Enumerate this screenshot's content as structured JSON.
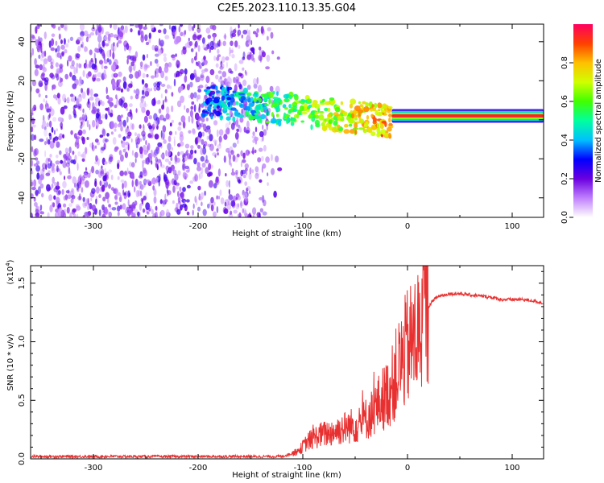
{
  "title": "C2E5.2023.110.13.35.G04",
  "chart_data": [
    {
      "type": "heatmap",
      "name": "spectrogram",
      "xlabel": "Height of straight line (km)",
      "ylabel": "Frequency (Hz)",
      "xlim": [
        -360,
        130
      ],
      "ylim": [
        -50,
        49
      ],
      "xticks": [
        -300,
        -200,
        -100,
        0,
        100
      ],
      "yticks": [
        -40,
        -20,
        0,
        20,
        40
      ],
      "colorbar": {
        "label": "Normalized spectral amplitude",
        "range": [
          0.0,
          1.0
        ],
        "ticks": [
          "0.0",
          "0.2",
          "0.4",
          "0.6",
          "0.8"
        ],
        "colors": [
          "#ffffff",
          "#c080ff",
          "#6a00e0",
          "#0000ff",
          "#00c0ff",
          "#00ffa0",
          "#40ff00",
          "#d0ff00",
          "#ffc000",
          "#ff4000",
          "#ff0060"
        ]
      },
      "features": {
        "noise_region_km": [
          -360,
          -120
        ],
        "noise_amplitude": 0.2,
        "transition_region_km": [
          -195,
          -15
        ],
        "signal_ridge_km": [
          -15,
          130
        ],
        "signal_ridge_frequency_hz": 2,
        "signal_ridge_peak_amplitude": 0.95
      }
    },
    {
      "type": "line",
      "name": "snr",
      "xlabel": "Height of straight line (km)",
      "ylabel": "SNR (10 * v/v)",
      "y_scale_label": "(x10",
      "y_scale_exponent": "4",
      "y_scale_close": ")",
      "xlim": [
        -360,
        130
      ],
      "ylim": [
        0,
        1.65
      ],
      "xticks": [
        -300,
        -200,
        -100,
        0,
        100
      ],
      "yticks": [
        "0.0",
        "0.5",
        "1.0",
        "1.5"
      ],
      "yticks_values": [
        0.0,
        0.5,
        1.0,
        1.5
      ],
      "color": "#e83030",
      "series": [
        {
          "x": [
            -360,
            -300,
            -250,
            -200,
            -150,
            -120,
            -105,
            -95,
            -85,
            -75,
            -65,
            -55,
            -45,
            -35,
            -25,
            -20,
            -15,
            -10,
            -5,
            0,
            5,
            10,
            15,
            20,
            25,
            30,
            35,
            40,
            50,
            60,
            70,
            80,
            90,
            95,
            100,
            110,
            120,
            130
          ],
          "y": [
            0.02,
            0.02,
            0.02,
            0.02,
            0.02,
            0.02,
            0.06,
            0.15,
            0.2,
            0.22,
            0.25,
            0.28,
            0.3,
            0.38,
            0.5,
            0.55,
            0.62,
            0.75,
            0.85,
            0.95,
            1.0,
            1.08,
            1.2,
            1.3,
            1.36,
            1.39,
            1.4,
            1.41,
            1.41,
            1.4,
            1.39,
            1.38,
            1.36,
            1.36,
            1.36,
            1.36,
            1.35,
            1.33
          ]
        }
      ]
    }
  ]
}
